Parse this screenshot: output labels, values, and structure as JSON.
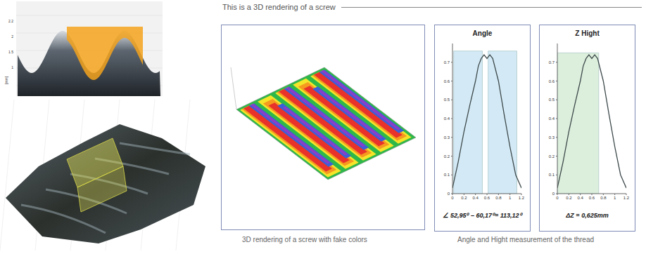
{
  "header": {
    "title": "This is a 3D rendering of a screw"
  },
  "left_top_axis": {
    "ticks": [
      "2.2",
      "2",
      "1.5",
      "1"
    ],
    "label": "[mm]"
  },
  "captions": [
    "3D rendering of a screw with fake colors",
    "Angle and Hight measurement of the thread"
  ],
  "chart_data": [
    {
      "type": "line",
      "title": "Angle",
      "x": [
        0,
        0.1,
        0.2,
        0.3,
        0.4,
        0.45,
        0.5,
        0.55,
        0.6,
        0.65,
        0.7,
        0.8,
        0.9,
        1.0,
        1.1,
        1.2
      ],
      "values": [
        0.03,
        0.17,
        0.33,
        0.47,
        0.6,
        0.68,
        0.72,
        0.74,
        0.72,
        0.74,
        0.72,
        0.6,
        0.42,
        0.25,
        0.1,
        0.03
      ],
      "color": "#3f4a4c",
      "xlim": [
        0,
        1.2
      ],
      "xticks": [
        0,
        0.2,
        0.4,
        0.6,
        0.8,
        1,
        1.2
      ],
      "ylim": [
        0,
        0.8
      ],
      "yticks": [
        0,
        0.1,
        0.2,
        0.3,
        0.4,
        0.5,
        0.6,
        0.7
      ],
      "highlights": [
        {
          "x": [
            0.02,
            0.52
          ],
          "y": [
            0,
            0.76
          ],
          "color": "#d3eaf6"
        },
        {
          "x": [
            0.62,
            1.12
          ],
          "y": [
            0,
            0.76
          ],
          "color": "#d3eaf6"
        }
      ],
      "annotation": "∠ 52,95⁰ – 60,17⁰= 113,12⁰"
    },
    {
      "type": "line",
      "title": "Z Hight",
      "x": [
        0,
        0.1,
        0.2,
        0.3,
        0.4,
        0.45,
        0.5,
        0.55,
        0.6,
        0.65,
        0.7,
        0.8,
        0.9,
        1.0,
        1.1,
        1.2
      ],
      "values": [
        0.03,
        0.17,
        0.33,
        0.47,
        0.6,
        0.68,
        0.72,
        0.74,
        0.72,
        0.74,
        0.72,
        0.6,
        0.42,
        0.25,
        0.1,
        0.03
      ],
      "color": "#3f4a4c",
      "xlim": [
        0,
        1.2
      ],
      "xticks": [
        0,
        0.2,
        0.4,
        0.6,
        0.8,
        1,
        1.2
      ],
      "ylim": [
        0,
        0.8
      ],
      "yticks": [
        0,
        0.1,
        0.2,
        0.3,
        0.4,
        0.5,
        0.6,
        0.7
      ],
      "highlights": [
        {
          "x": [
            0,
            0.72
          ],
          "y": [
            0,
            0.75
          ],
          "color": "#dcefdc"
        }
      ],
      "annotation": "ΔZ = 0,625mm"
    }
  ]
}
